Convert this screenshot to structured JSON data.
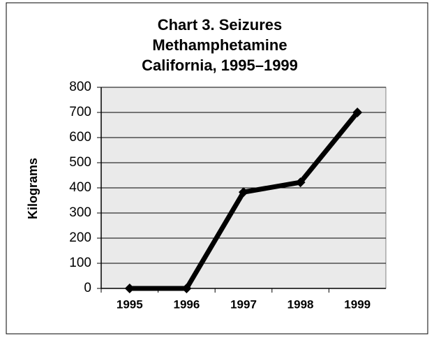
{
  "chart_data": {
    "type": "line",
    "title": [
      "Chart 3. Seizures",
      "Methamphetamine",
      "California, 1995–1999"
    ],
    "y_label": "Kilograms",
    "categories": [
      "1995",
      "1996",
      "1997",
      "1998",
      "1999"
    ],
    "series": [
      {
        "name": "Methamphetamine",
        "color": "#000000",
        "values": [
          0,
          0,
          383,
          422,
          700
        ]
      }
    ],
    "ylim": [
      0,
      800
    ],
    "yticks": [
      0,
      100,
      200,
      300,
      400,
      500,
      600,
      700,
      800
    ],
    "grid": true
  }
}
